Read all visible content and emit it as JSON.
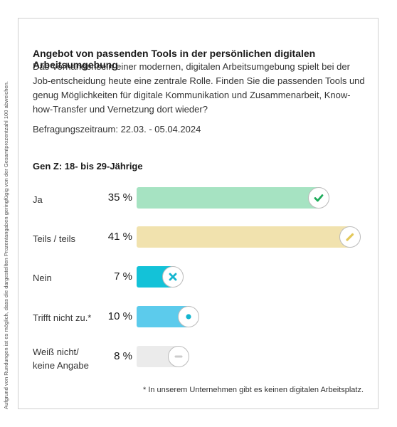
{
  "side_note": "Aufgrund von Rundungen ist es möglich, dass die dargestellten Prozentangaben geringfügig von der Gesamtprozentzahl 100 abweichen.",
  "title": "Angebot von passenden Tools in der persönlichen digitalen Arbeitsumgebung",
  "question": "Das Vorhandensein einer modernen, digitalen Arbeitsumgebung spielt bei der Job-entscheidung heute eine zentrale Rolle. Finden Sie die passenden Tools und genug Möglichkeiten für digitale Kommunikation und Zusammenarbeit, Know-how-Transfer und Vernetzung dort wieder?",
  "period": "Befragungszeitraum: 22.03. - 05.04.2024",
  "group": "Gen Z: 18- bis 29-Jährige",
  "footnote": "* In unserem Unternehmen gibt es keinen digitalen Arbeitsplatz.",
  "chart_data": {
    "type": "bar",
    "orientation": "horizontal",
    "categories": [
      "Ja",
      "Teils / teils",
      "Nein",
      "Trifft nicht zu.*",
      "Weiß nicht/ keine Angabe"
    ],
    "values": [
      35,
      41,
      7,
      10,
      8
    ],
    "value_labels": [
      "35 %",
      "41 %",
      "7 %",
      "10 %",
      "8 %"
    ],
    "unit": "%",
    "colors": [
      "#a6e3c2",
      "#f1e2ae",
      "#13c2d8",
      "#5ccbec",
      "#ebebeb"
    ],
    "icons": [
      "check-icon",
      "pencil-icon",
      "cross-icon",
      "dot-icon",
      "minus-icon"
    ],
    "icon_colors": [
      "#1dab5a",
      "#e3c85a",
      "#13b5cf",
      "#13b5cf",
      "#cccccc"
    ]
  }
}
